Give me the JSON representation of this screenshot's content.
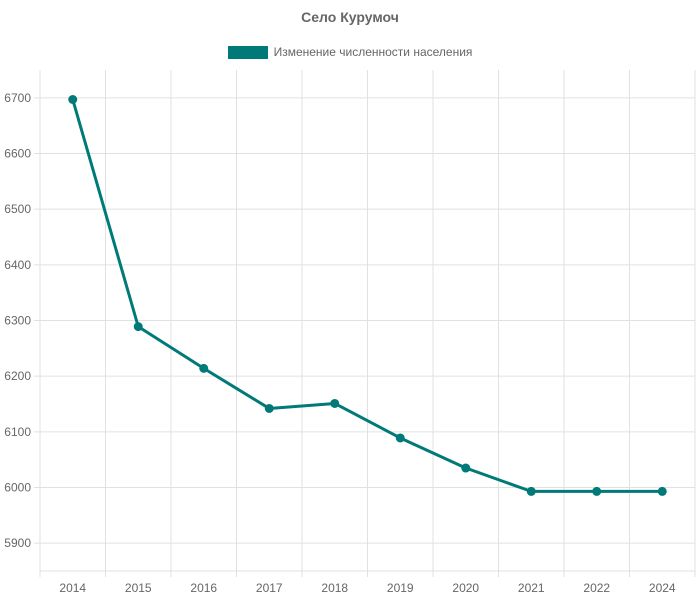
{
  "chart_data": {
    "type": "line",
    "title": "Село Курумоч",
    "xlabel": "",
    "ylabel": "",
    "categories": [
      "2014",
      "2015",
      "2016",
      "2017",
      "2018",
      "2019",
      "2020",
      "2021",
      "2022",
      "2024"
    ],
    "series": [
      {
        "name": "Изменение численности населения",
        "values": [
          6697,
          6289,
          6214,
          6142,
          6151,
          6089,
          6035,
          5993,
          5993,
          5993
        ],
        "color": "#007a78"
      }
    ],
    "ylim": [
      5850,
      6750
    ],
    "yticks": [
      5900,
      6000,
      6100,
      6200,
      6300,
      6400,
      6500,
      6600,
      6700
    ],
    "grid": true,
    "legend_position": "top"
  },
  "colors": {
    "grid": "#e1e1e1",
    "text": "#666666"
  }
}
